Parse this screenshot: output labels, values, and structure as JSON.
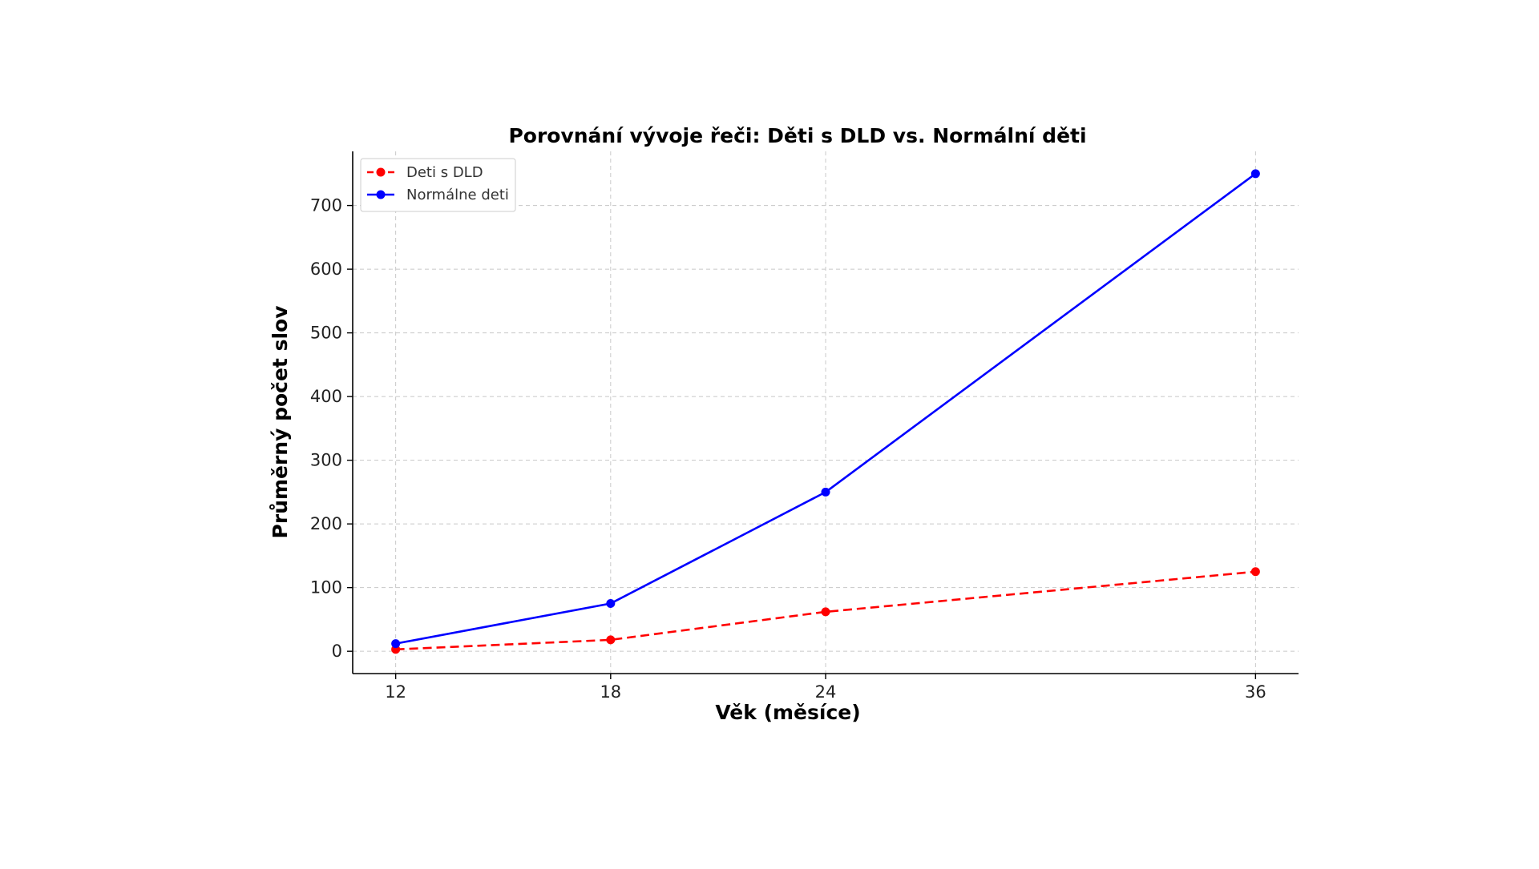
{
  "chart_data": {
    "type": "line",
    "title": "Porovnání vývoje řeči: Děti s DLD vs. Normální děti",
    "xlabel": "Věk (měsíce)",
    "ylabel": "Průměrný počet slov",
    "x": [
      12,
      18,
      24,
      36
    ],
    "xlim": [
      10.8,
      37.2
    ],
    "ylim": [
      -35,
      785
    ],
    "xticks": [
      12,
      18,
      24,
      36
    ],
    "yticks": [
      0,
      100,
      200,
      300,
      400,
      500,
      600,
      700
    ],
    "grid": true,
    "legend_position": "top-left",
    "series": [
      {
        "name": "Deti s DLD",
        "values": [
          3,
          18,
          62,
          125
        ],
        "color": "#ff0000",
        "line_style": "dashed",
        "marker": "circle"
      },
      {
        "name": "Normálne deti",
        "values": [
          12,
          75,
          250,
          750
        ],
        "color": "#0000ff",
        "line_style": "solid",
        "marker": "circle"
      }
    ]
  }
}
